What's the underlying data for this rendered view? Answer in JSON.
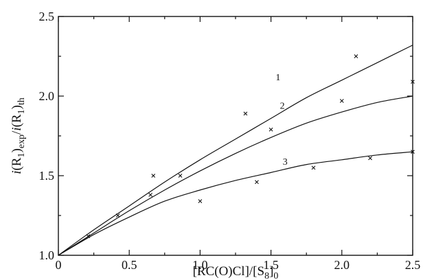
{
  "chart_data": {
    "type": "line",
    "title": "",
    "xlim": [
      0,
      2.5
    ],
    "ylim": [
      1.0,
      2.5
    ],
    "grid": false,
    "x_ticks": [
      "0",
      "0.5",
      "1.0",
      "1.5",
      "2.0",
      "2.5"
    ],
    "y_ticks": [
      "1.0",
      "1.5",
      "2.0",
      "2.5"
    ],
    "xlabel": {
      "prefix": "[RC(O)Cl]/[S",
      "sub": "8",
      "suffix": "]",
      "sub2": "0"
    },
    "ylabel": {
      "p1": "i",
      "p2": "(R",
      "p3": "1",
      "p4": ")",
      "p5": "exp",
      "p6": "/",
      "p7": "i",
      "p8": "(R",
      "p9": "1",
      "p10": ")",
      "p11": "th"
    },
    "series": [
      {
        "label": "1",
        "label_at": [
          1.55,
          2.1
        ],
        "curve": [
          [
            0,
            1.0
          ],
          [
            0.25,
            1.16
          ],
          [
            0.5,
            1.31
          ],
          [
            0.75,
            1.46
          ],
          [
            1.0,
            1.6
          ],
          [
            1.25,
            1.73
          ],
          [
            1.5,
            1.86
          ],
          [
            1.75,
            1.99
          ],
          [
            2.0,
            2.1
          ],
          [
            2.25,
            2.21
          ],
          [
            2.5,
            2.32
          ]
        ],
        "points": [
          [
            0.67,
            1.5
          ],
          [
            1.32,
            1.89
          ],
          [
            2.1,
            2.25
          ]
        ]
      },
      {
        "label": "2",
        "label_at": [
          1.58,
          1.92
        ],
        "curve": [
          [
            0,
            1.0
          ],
          [
            0.25,
            1.14
          ],
          [
            0.5,
            1.28
          ],
          [
            0.75,
            1.41
          ],
          [
            1.0,
            1.53
          ],
          [
            1.25,
            1.64
          ],
          [
            1.5,
            1.74
          ],
          [
            1.75,
            1.83
          ],
          [
            2.0,
            1.9
          ],
          [
            2.25,
            1.96
          ],
          [
            2.5,
            2.0
          ]
        ],
        "points": [
          [
            0.65,
            1.38
          ],
          [
            0.86,
            1.5
          ],
          [
            1.5,
            1.79
          ],
          [
            2.0,
            1.97
          ],
          [
            2.5,
            2.09
          ]
        ]
      },
      {
        "label": "3",
        "label_at": [
          1.6,
          1.57
        ],
        "curve": [
          [
            0,
            1.0
          ],
          [
            0.25,
            1.13
          ],
          [
            0.5,
            1.24
          ],
          [
            0.75,
            1.34
          ],
          [
            1.0,
            1.41
          ],
          [
            1.25,
            1.47
          ],
          [
            1.5,
            1.52
          ],
          [
            1.75,
            1.57
          ],
          [
            2.0,
            1.6
          ],
          [
            2.25,
            1.63
          ],
          [
            2.5,
            1.65
          ]
        ],
        "points": [
          [
            0.21,
            1.12
          ],
          [
            0.42,
            1.25
          ],
          [
            1.0,
            1.34
          ],
          [
            1.4,
            1.46
          ],
          [
            1.8,
            1.55
          ],
          [
            2.2,
            1.61
          ],
          [
            2.5,
            1.65
          ]
        ]
      }
    ]
  }
}
